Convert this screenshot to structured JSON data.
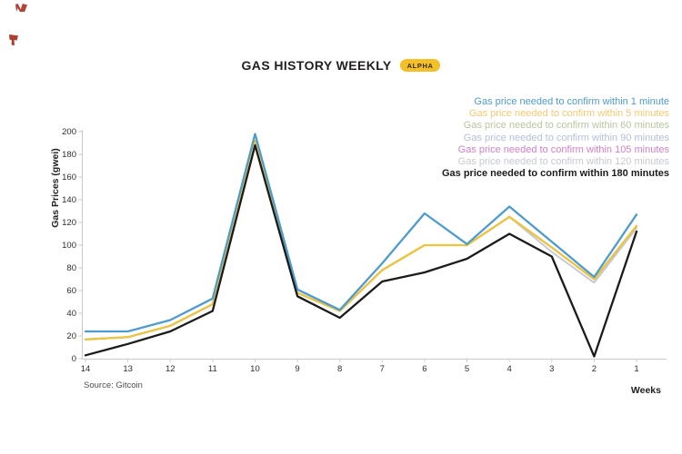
{
  "header": {
    "title": "GAS HISTORY WEEKLY",
    "badge_label": "ALPHA"
  },
  "colors": {
    "badge_bg": "#f3c029",
    "badge_text": "#362c07",
    "axis": "#c9c9c9",
    "tick_text": "#2d2d2d",
    "corner_mark": "#b03a2e"
  },
  "chart_data": {
    "type": "line",
    "title": "GAS HISTORY WEEKLY",
    "xlabel": "Weeks",
    "ylabel": "Gas Prices (gwei)",
    "source": "Source: Gitcoin",
    "x": [
      14,
      13,
      12,
      11,
      10,
      9,
      8,
      7,
      6,
      5,
      4,
      3,
      2,
      1
    ],
    "x_axis_reversed": true,
    "ylim": [
      0,
      200
    ],
    "y_ticks": [
      0,
      20,
      40,
      60,
      80,
      100,
      120,
      140,
      160,
      180,
      200
    ],
    "grid": false,
    "legend_position": "top-right",
    "draw_order": [
      2,
      3,
      4,
      5,
      1,
      0,
      6
    ],
    "series": [
      {
        "id": "1min",
        "name": "Gas price needed to confirm within 1 minute",
        "color": "#4e9bcd",
        "width": 2.3,
        "values": [
          24,
          24,
          34,
          53,
          198,
          61,
          43,
          84,
          128,
          101,
          134,
          103,
          72,
          127
        ]
      },
      {
        "id": "5min",
        "name": "Gas price needed to confirm within 5 minutes",
        "color": "#edc440",
        "legend_color": "#f4ca74",
        "width": 2.3,
        "values": [
          17,
          19,
          29,
          48,
          192,
          58,
          42,
          78,
          100,
          100,
          125,
          98,
          70,
          117
        ]
      },
      {
        "id": "60min",
        "name": "Gas price needed to confirm within 60 minutes",
        "color": "#b6c79e",
        "width": 2,
        "values": [
          17,
          19,
          29,
          48,
          192,
          58,
          42,
          78,
          100,
          100,
          125,
          98,
          70,
          117
        ]
      },
      {
        "id": "90min",
        "name": "Gas price needed to confirm within 90 minutes",
        "color": "#b3c0da",
        "width": 2,
        "values": [
          17,
          19,
          29,
          48,
          192,
          58,
          42,
          78,
          100,
          100,
          125,
          98,
          70,
          117
        ]
      },
      {
        "id": "105min",
        "name": "Gas price needed to confirm within 105 minutes",
        "color": "#d083c6",
        "width": 2,
        "values": [
          17,
          19,
          29,
          48,
          192,
          58,
          42,
          78,
          100,
          100,
          125,
          98,
          70,
          117
        ]
      },
      {
        "id": "120min",
        "name": "Gas price needed to confirm within 120 minutes",
        "color": "#c6c9d3",
        "width": 2,
        "values": [
          17,
          19,
          29,
          48,
          192,
          58,
          42,
          78,
          100,
          100,
          125,
          94,
          67,
          115
        ]
      },
      {
        "id": "180min",
        "name": "Gas price needed to confirm within 180 minutes",
        "color": "#1b1b1b",
        "width": 2.3,
        "values": [
          3,
          13,
          24,
          42,
          188,
          55,
          36,
          68,
          76,
          88,
          110,
          90,
          2,
          112
        ]
      }
    ]
  }
}
